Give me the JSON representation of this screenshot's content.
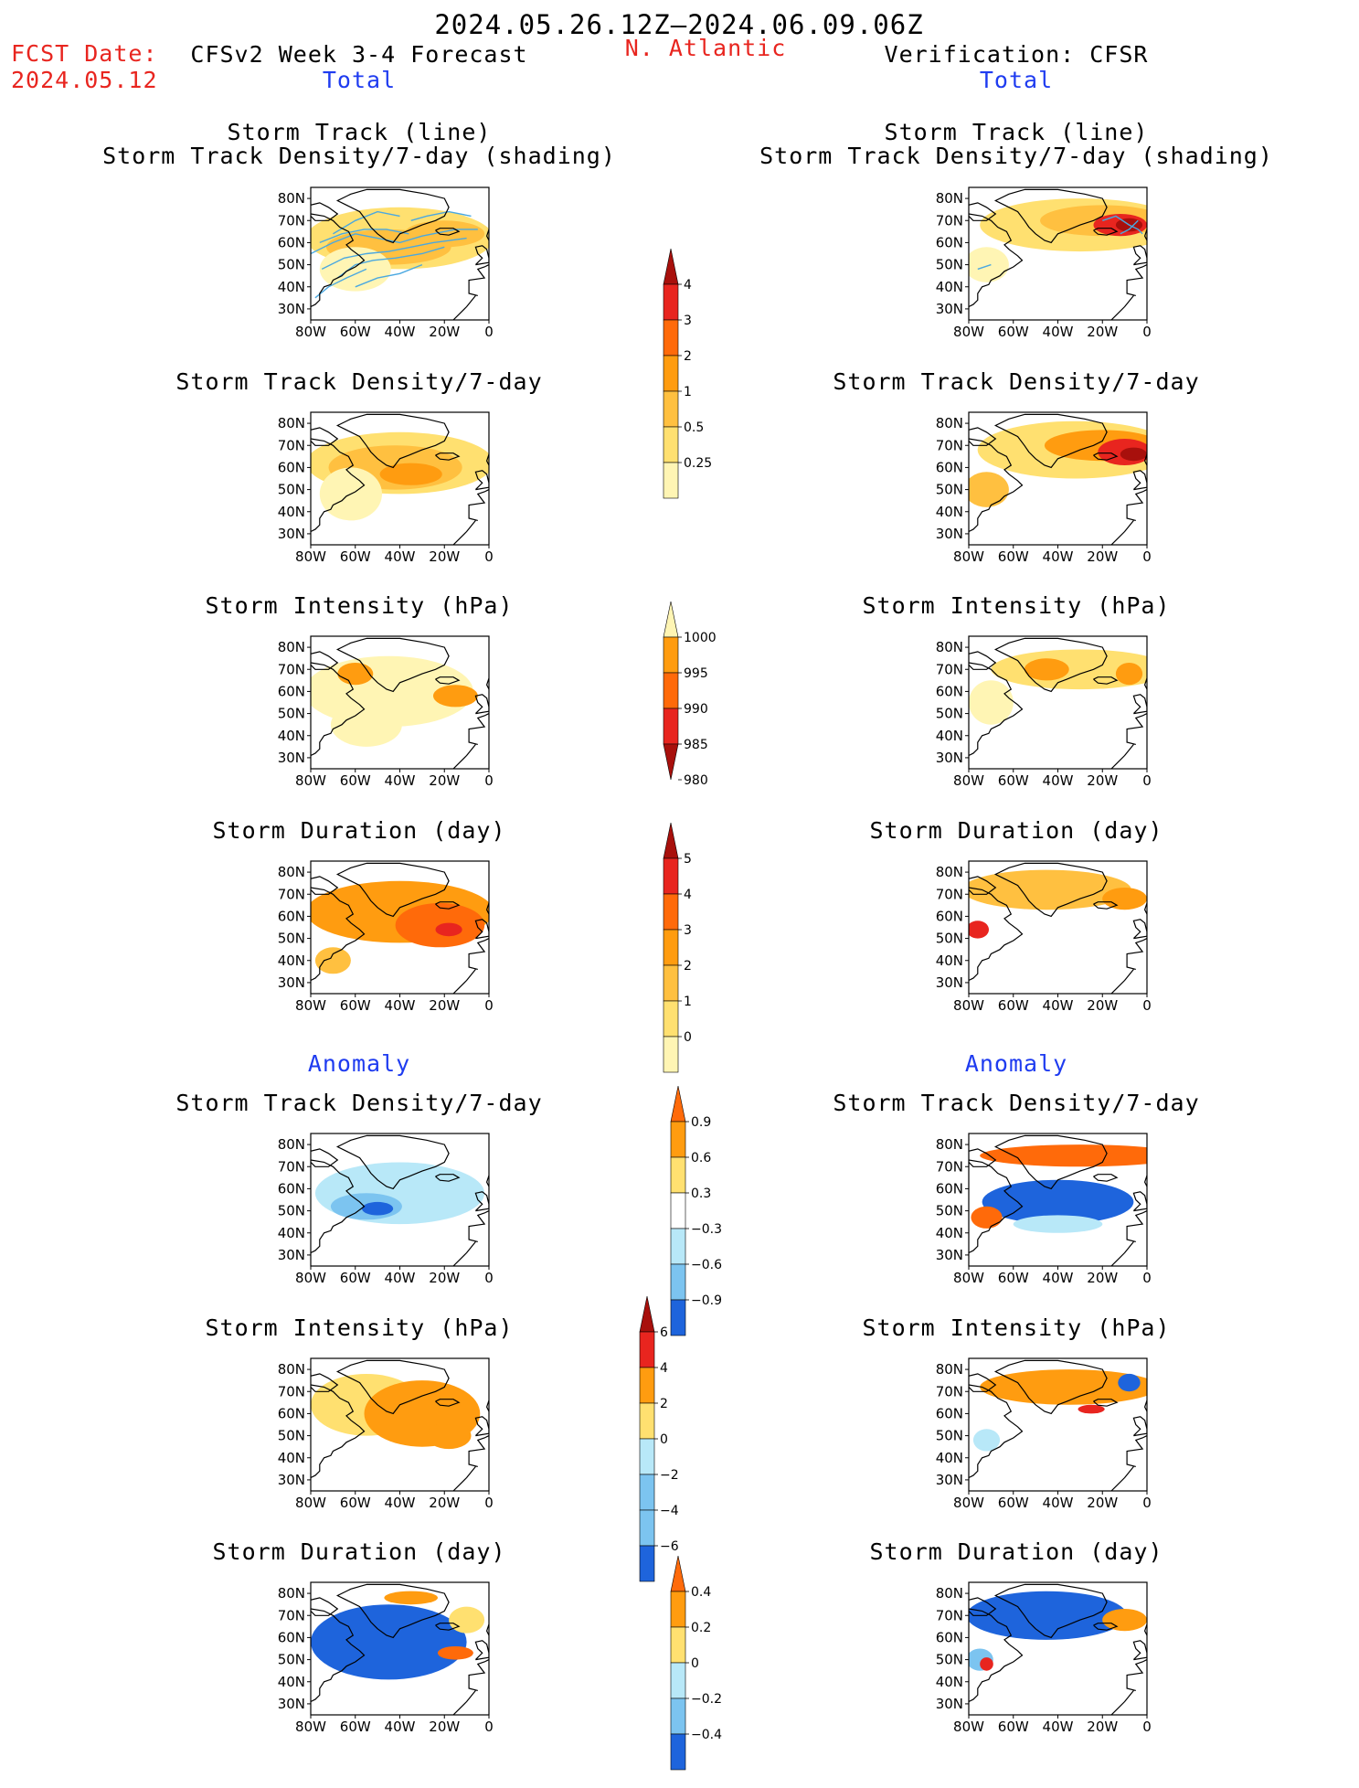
{
  "header": {
    "date_range": "2024.05.26.12Z–2024.06.09.06Z",
    "fcst_label": "FCST Date:",
    "fcst_date": "2024.05.12",
    "forecast_title": "CFSv2 Week 3-4 Forecast",
    "region": "N. Atlantic",
    "verification_title": "Verification: CFSR"
  },
  "sections": {
    "total": "Total",
    "anomaly": "Anomaly"
  },
  "panel_titles": {
    "track_line": "Storm Track (line)",
    "track_shading": "Storm Track Density/7-day (shading)",
    "density": "Storm Track Density/7-day",
    "intensity": "Storm Intensity (hPa)",
    "duration": "Storm Duration (day)"
  },
  "axes": {
    "lat_labels": [
      "80N",
      "70N",
      "60N",
      "50N",
      "40N",
      "30N"
    ],
    "lon_labels": [
      "80W",
      "60W",
      "40W",
      "20W",
      "0"
    ]
  },
  "colorbars": {
    "density_total": [
      "4",
      "3",
      "2",
      "1",
      "0.5",
      "0.25"
    ],
    "intensity_total": [
      "1000",
      "995",
      "990",
      "985",
      "980"
    ],
    "duration_total": [
      "5",
      "4",
      "3",
      "2",
      "1",
      "0"
    ],
    "density_anomaly": [
      "0.9",
      "0.6",
      "0.3",
      "−0.3",
      "−0.6",
      "−0.9"
    ],
    "intensity_anomaly": [
      "6",
      "4",
      "2",
      "0",
      "−2",
      "−4",
      "−6"
    ],
    "duration_anomaly": [
      "0.4",
      "0.2",
      "0",
      "−0.2",
      "−0.4"
    ]
  },
  "colors": {
    "title_red": "#e8251f",
    "label_blue": "#1f3cf0",
    "shade_light": "#fff5b4",
    "shade_yellow": "#ffe070",
    "shade_orange_light": "#ffc040",
    "shade_orange": "#ff9c10",
    "shade_orange_dark": "#ff6a0a",
    "shade_red": "#e8251f",
    "shade_darkred": "#a8100c",
    "track_line": "#4aa8e0",
    "neg_light": "#b8e8f8",
    "neg_mid": "#7cc4f0",
    "neg_dark": "#1e64dc"
  }
}
